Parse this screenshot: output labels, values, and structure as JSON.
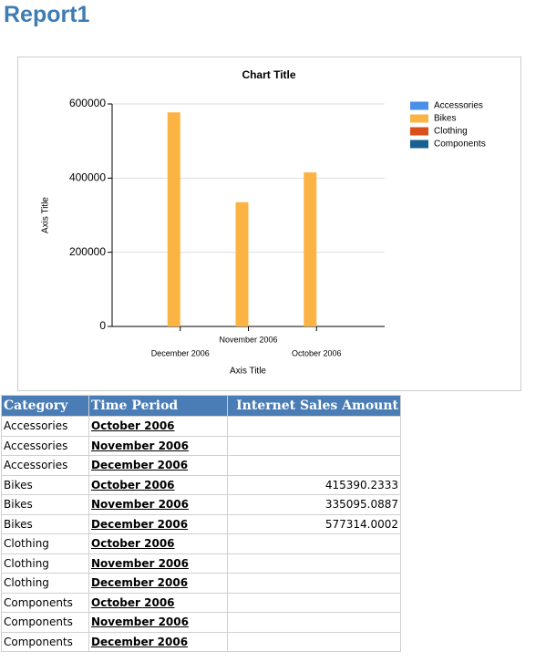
{
  "title": "Report1",
  "chart_data": {
    "type": "bar",
    "title": "Chart Title",
    "x_label": "Axis Title",
    "y_label": "Axis Title",
    "categories": [
      "December 2006",
      "November 2006",
      "October 2006"
    ],
    "series": [
      {
        "name": "Accessories",
        "color": "#4a8fe8",
        "values": [
          null,
          null,
          null
        ]
      },
      {
        "name": "Bikes",
        "color": "#fbb444",
        "values": [
          577314.0002,
          335095.0887,
          415390.2333
        ]
      },
      {
        "name": "Clothing",
        "color": "#d9501a",
        "values": [
          null,
          null,
          null
        ]
      },
      {
        "name": "Components",
        "color": "#17608f",
        "values": [
          null,
          null,
          null
        ]
      }
    ],
    "ylim": [
      0,
      600000
    ],
    "yticks": [
      0,
      200000,
      400000,
      600000
    ],
    "grid": true,
    "legend": "right"
  },
  "table": {
    "header": [
      "Category",
      "Time Period",
      "Internet Sales Amount"
    ],
    "rows": [
      [
        "Accessories",
        "October 2006",
        null
      ],
      [
        "Accessories",
        "November 2006",
        null
      ],
      [
        "Accessories",
        "December 2006",
        null
      ],
      [
        "Bikes",
        "October 2006",
        "415390.2333"
      ],
      [
        "Bikes",
        "November 2006",
        "335095.0887"
      ],
      [
        "Bikes",
        "December 2006",
        "577314.0002"
      ],
      [
        "Clothing",
        "October 2006",
        null
      ],
      [
        "Clothing",
        "November 2006",
        null
      ],
      [
        "Clothing",
        "December 2006",
        null
      ],
      [
        "Components",
        "October 2006",
        null
      ],
      [
        "Components",
        "November 2006",
        null
      ],
      [
        "Components",
        "December 2006",
        null
      ]
    ]
  }
}
